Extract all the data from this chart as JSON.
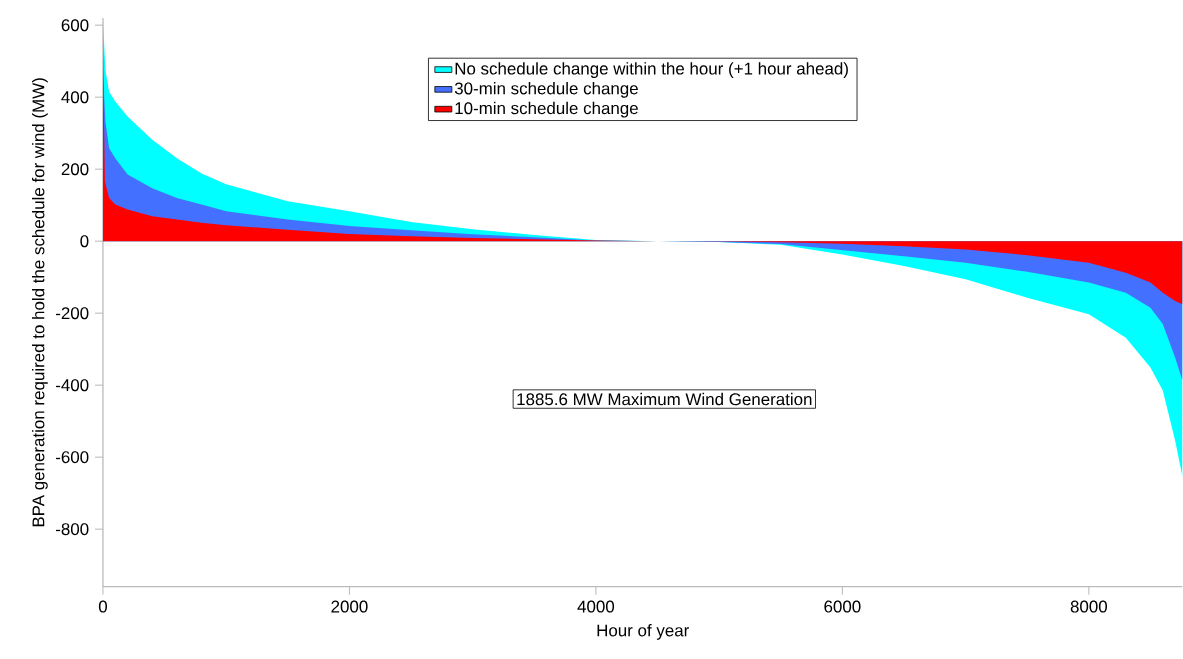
{
  "chart_data": {
    "type": "area",
    "xlabel": "Hour of year",
    "ylabel": "BPA generation required to hold the schedule for wind (MW)",
    "annotations": [
      "1885.6 MW Maximum Wind Generation"
    ],
    "xlim": [
      0,
      8760
    ],
    "ylim": [
      -960,
      620
    ],
    "xticks": [
      0,
      2000,
      4000,
      6000,
      8000
    ],
    "yticks": [
      -800,
      -600,
      -400,
      -200,
      0,
      200,
      400,
      600
    ],
    "grid": false,
    "legend": "top",
    "series": [
      {
        "name": "No schedule change within the hour (+1 hour ahead)",
        "color": "#00ffff",
        "x": [
          0,
          20,
          50,
          100,
          200,
          400,
          600,
          800,
          1000,
          1500,
          2000,
          2500,
          3000,
          3500,
          4000,
          4500,
          5000,
          5500,
          6000,
          6500,
          7000,
          7500,
          8000,
          8300,
          8500,
          8600,
          8700,
          8760
        ],
        "values": [
          615,
          476,
          415,
          388,
          346,
          282,
          230,
          188,
          158,
          111,
          83,
          53,
          33,
          17,
          3,
          0,
          -2,
          -10,
          -37,
          -69,
          -106,
          -157,
          -203,
          -268,
          -351,
          -415,
          -554,
          -655
        ]
      },
      {
        "name": "30-min schedule change",
        "color": "#4470ff",
        "x": [
          0,
          10,
          20,
          50,
          100,
          200,
          400,
          600,
          800,
          1000,
          1500,
          2000,
          2500,
          3000,
          3500,
          4000,
          4500,
          5000,
          5500,
          6000,
          6500,
          7000,
          7500,
          8000,
          8300,
          8500,
          8600,
          8700,
          8760
        ],
        "values": [
          575,
          400,
          332,
          258,
          230,
          185,
          147,
          120,
          102,
          83,
          60,
          42,
          30,
          19,
          11,
          2,
          0,
          -2,
          -8,
          -25,
          -42,
          -60,
          -85,
          -115,
          -143,
          -185,
          -230,
          -323,
          -388
        ]
      },
      {
        "name": "10-min schedule change",
        "color": "#ff0000",
        "x": [
          0,
          10,
          16,
          50,
          100,
          200,
          400,
          600,
          800,
          1000,
          1500,
          2000,
          2500,
          3000,
          3500,
          4000,
          4500,
          5000,
          5500,
          6000,
          6500,
          7000,
          7500,
          8000,
          8300,
          8500,
          8600,
          8700,
          8760
        ],
        "values": [
          480,
          300,
          166,
          120,
          102,
          88,
          69,
          60,
          51,
          44,
          32,
          20,
          14,
          9,
          5,
          2,
          0,
          -1,
          -3,
          -7,
          -14,
          -23,
          -39,
          -60,
          -88,
          -115,
          -143,
          -166,
          -175
        ]
      }
    ]
  }
}
